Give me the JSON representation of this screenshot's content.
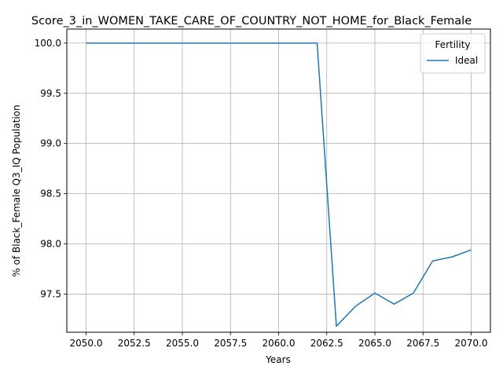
{
  "chart_data": {
    "type": "line",
    "title": "Score_3_in_WOMEN_TAKE_CARE_OF_COUNTRY_NOT_HOME_for_Black_Female",
    "xlabel": "Years",
    "ylabel": "% of Black_Female Q3_IQ Population",
    "xlim": [
      2049.0,
      2071.0
    ],
    "ylim": [
      97.12,
      100.14
    ],
    "x_ticks": [
      2050.0,
      2052.5,
      2055.0,
      2057.5,
      2060.0,
      2062.5,
      2065.0,
      2067.5,
      2070.0
    ],
    "x_tick_labels": [
      "2050.0",
      "2052.5",
      "2055.0",
      "2057.5",
      "2060.0",
      "2062.5",
      "2065.0",
      "2067.5",
      "2070.0"
    ],
    "y_ticks": [
      97.5,
      98.0,
      98.5,
      99.0,
      99.5,
      100.0
    ],
    "y_tick_labels": [
      "97.5",
      "98.0",
      "98.5",
      "99.0",
      "99.5",
      "100.0"
    ],
    "grid": true,
    "legend": {
      "title": "Fertility",
      "placement": "top-right"
    },
    "series": [
      {
        "name": "Ideal",
        "color": "#1f77b4",
        "x": [
          2050,
          2051,
          2052,
          2053,
          2054,
          2055,
          2056,
          2057,
          2058,
          2059,
          2060,
          2061,
          2062,
          2063,
          2064,
          2065,
          2066,
          2067,
          2068,
          2069,
          2070
        ],
        "y": [
          100.0,
          100.0,
          100.0,
          100.0,
          100.0,
          100.0,
          100.0,
          100.0,
          100.0,
          100.0,
          100.0,
          100.0,
          100.0,
          97.18,
          97.38,
          97.51,
          97.4,
          97.51,
          97.83,
          97.87,
          97.94
        ]
      }
    ]
  }
}
